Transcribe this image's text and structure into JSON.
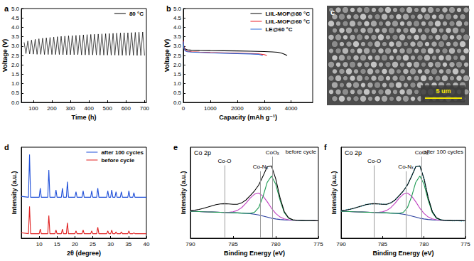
{
  "chart_data": [
    {
      "panel": "a",
      "type": "line",
      "x_label": "Time (h)",
      "y_label": "Voltage (V)",
      "x": [
        50,
        60,
        70,
        80,
        90,
        100,
        110,
        120,
        130,
        140,
        150,
        160,
        170,
        180,
        190,
        200,
        210,
        220,
        230,
        240,
        250,
        260,
        270,
        280,
        290,
        300,
        310,
        320,
        330,
        340,
        350,
        360,
        370,
        380,
        390,
        400,
        410,
        420,
        430,
        440,
        450,
        460,
        470,
        480,
        490,
        500,
        510,
        520,
        530,
        540,
        550,
        560,
        570,
        580,
        590,
        600,
        610,
        620,
        630,
        640,
        650,
        660,
        670,
        680,
        690,
        700
      ],
      "series": [
        {
          "name": "80 °C",
          "color": "#000000",
          "values": [
            3.2,
            2.6,
            3.27,
            2.58,
            3.32,
            2.57,
            3.36,
            2.56,
            3.39,
            2.56,
            3.42,
            2.55,
            3.44,
            2.55,
            3.46,
            2.55,
            3.48,
            2.55,
            3.5,
            2.55,
            3.52,
            2.54,
            3.53,
            2.54,
            3.55,
            2.54,
            3.56,
            2.54,
            3.57,
            2.54,
            3.58,
            2.53,
            3.6,
            2.53,
            3.61,
            2.53,
            3.62,
            2.53,
            3.63,
            2.53,
            3.64,
            2.52,
            3.65,
            2.52,
            3.66,
            2.52,
            3.67,
            2.52,
            3.68,
            2.52,
            3.69,
            2.51,
            3.7,
            2.51,
            3.71,
            2.51,
            3.71,
            2.51,
            3.72,
            2.51,
            3.73,
            2.5,
            3.74,
            2.5,
            3.75,
            2.5
          ]
        }
      ],
      "xlim": [
        35,
        710
      ],
      "xticks": [
        100,
        200,
        300,
        400,
        500,
        600,
        700
      ],
      "ylim": [
        0,
        5
      ],
      "yticks": [
        {
          "value": 0,
          "label": "0.0"
        },
        0.5,
        {
          "value": 1,
          "label": "1.0"
        },
        1.5,
        {
          "value": 2,
          "label": "2.0"
        },
        2.5,
        {
          "value": 3,
          "label": "3.0"
        },
        3.5,
        {
          "value": 4,
          "label": "4.0"
        },
        4.5,
        {
          "value": 5,
          "label": "5.0"
        }
      ],
      "legend": "upper right"
    },
    {
      "panel": "b",
      "type": "line",
      "x_label": "Capacity (mAh g⁻¹)",
      "y_label": "Voltage (V)",
      "series": [
        {
          "name": "LiIL-MOF@80 °C",
          "color": "#000000",
          "x": [
            0,
            20,
            60,
            150,
            300,
            600,
            1000,
            1500,
            2000,
            2500,
            3000,
            3300,
            3500,
            3650,
            3750,
            3850
          ],
          "values": [
            3.2,
            2.95,
            2.85,
            2.8,
            2.78,
            2.77,
            2.76,
            2.75,
            2.74,
            2.73,
            2.71,
            2.69,
            2.67,
            2.62,
            2.57,
            2.5
          ]
        },
        {
          "name": "LiIL-MOF@60 °C",
          "color": "#e8202a",
          "x": [
            0,
            20,
            60,
            150,
            300,
            600,
            1000,
            1500,
            2000,
            2500,
            2800,
            3000,
            3100
          ],
          "values": [
            3.3,
            2.95,
            2.8,
            2.72,
            2.7,
            2.68,
            2.66,
            2.64,
            2.62,
            2.6,
            2.58,
            2.55,
            2.5
          ]
        },
        {
          "name": "LE@60 °C",
          "color": "#2a6ad8",
          "x": [
            0,
            20,
            60,
            150,
            300,
            600,
            1000,
            1500,
            2000,
            2500,
            2800,
            2950
          ],
          "values": [
            3.25,
            2.9,
            2.75,
            2.7,
            2.68,
            2.66,
            2.64,
            2.62,
            2.6,
            2.58,
            2.56,
            2.5
          ]
        }
      ],
      "xlim": [
        0,
        4800
      ],
      "xticks": [
        0,
        1000,
        2000,
        3000,
        4000
      ],
      "ylim": [
        0,
        5
      ],
      "yticks": [
        {
          "value": 0,
          "label": "0.0"
        },
        0.5,
        {
          "value": 1,
          "label": "1.0"
        },
        1.5,
        {
          "value": 2,
          "label": "2.0"
        },
        2.5,
        {
          "value": 3,
          "label": "3.0"
        },
        3.5,
        {
          "value": 4,
          "label": "4.0"
        },
        4.5,
        {
          "value": 5,
          "label": "5.0"
        }
      ],
      "legend": "upper right"
    },
    {
      "panel": "c",
      "type": "image",
      "annotations": [
        {
          "text": "5 um"
        }
      ]
    },
    {
      "panel": "d",
      "type": "line",
      "x_label": "2θ (degree)",
      "y_label": "Intensity (a.u.)",
      "x": [
        5,
        7.0,
        7.3,
        7.6,
        10.0,
        10.3,
        10.6,
        12.4,
        12.7,
        13.0,
        14.4,
        14.7,
        15.0,
        16.2,
        16.5,
        16.8,
        17.6,
        17.9,
        18.2,
        20.0,
        20.3,
        20.6,
        22.0,
        22.3,
        22.6,
        24.4,
        24.7,
        25.0,
        26.1,
        26.4,
        26.7,
        28.9,
        29.2,
        29.5,
        30.0,
        30.3,
        30.6,
        31.2,
        31.5,
        31.8,
        32.7,
        33.0,
        33.3,
        34.8,
        35.1,
        35.4,
        36.2,
        36.5,
        36.8,
        40
      ],
      "series": [
        {
          "name": "after 100 cycles",
          "color": "#1f4fd8",
          "values": [
            46,
            45,
            92,
            45,
            45,
            55,
            45,
            45,
            75,
            45,
            45,
            53,
            45,
            45,
            55,
            45,
            45,
            62,
            45,
            45,
            51,
            45,
            45,
            52,
            45,
            45,
            52,
            45,
            45,
            55,
            45,
            45,
            52,
            45,
            45,
            53,
            45,
            45,
            51,
            45,
            45,
            51,
            45,
            45,
            52,
            45,
            45,
            50,
            45,
            45
          ]
        },
        {
          "name": "before cycle",
          "color": "#e02020",
          "values": [
            6,
            5,
            35,
            5,
            5,
            10,
            5,
            5,
            25,
            5,
            5,
            9,
            5,
            5,
            10,
            5,
            5,
            17,
            5,
            5,
            8,
            5,
            5,
            9,
            5,
            5,
            8,
            5,
            5,
            12,
            5,
            5,
            8,
            5,
            5,
            9,
            5,
            5,
            7,
            5,
            5,
            7,
            5,
            5,
            8,
            5,
            5,
            6,
            5,
            5
          ]
        }
      ],
      "xlim": [
        5,
        40
      ],
      "xticks": [
        10,
        15,
        20,
        25,
        30,
        35,
        40
      ],
      "ylim": [
        0,
        100
      ],
      "tick_labels": "x",
      "legend": "upper right"
    },
    {
      "panel": "e",
      "type": "line",
      "title": "before cycle",
      "x_label": "Binding Energy (eV)",
      "y_label": "Intensity (a.u.)",
      "x": [
        790,
        789.5,
        789,
        788.5,
        788,
        787.5,
        787,
        786.5,
        786,
        785.5,
        785,
        784.5,
        784,
        783.5,
        783,
        782.5,
        782,
        781.5,
        781,
        780.5,
        780,
        779.5,
        779,
        778.5,
        778,
        777.5,
        777,
        776.5,
        776,
        775.5,
        775
      ],
      "series": [
        {
          "color": "#2a3f9f",
          "values": [
            37,
            36.8,
            36.6,
            36.4,
            36.2,
            36,
            35.8,
            35.6,
            35.4,
            35.2,
            35,
            34.8,
            34.5,
            34.2,
            33.8,
            33,
            32,
            30.5,
            29,
            27.5,
            26.5,
            25.8,
            25.3,
            25,
            24.8,
            24.6,
            24.4,
            24.2,
            24.1,
            24,
            23.9
          ]
        },
        {
          "color": "#c040c0",
          "values": [
            37,
            36.8,
            36.6,
            36.4,
            36.2,
            36,
            35.8,
            35.6,
            35.5,
            35.6,
            36.3,
            38.2,
            42,
            47.9,
            55,
            60.5,
            62,
            58,
            50.2,
            41.2,
            34,
            29.2,
            26.6,
            25.4,
            24.9,
            24.6,
            24.4,
            24.2,
            24.1,
            24,
            23.9
          ]
        },
        {
          "color": "#1a9850",
          "values": [
            37,
            36.8,
            36.6,
            36.4,
            36.2,
            36,
            35.8,
            35.6,
            35.4,
            35.2,
            35,
            34.8,
            34.5,
            34.2,
            34.2,
            35.6,
            42,
            57.1,
            76.7,
            85.5,
            74.2,
            52.4,
            35.3,
            27.6,
            25.2,
            24.6,
            24.4,
            24.2,
            24.1,
            24,
            23.9
          ]
        },
        {
          "color": "#000000",
          "values": [
            38.0,
            38.6,
            39.6,
            41.0,
            42.7,
            44.5,
            46.1,
            47.1,
            47.5,
            47.1,
            46.6,
            46.7,
            48.5,
            52.5,
            58.4,
            64.9,
            73.0,
            85.1,
            98.2,
            99.3,
            81.7,
            55.8,
            36.6,
            28.0,
            25.3,
            24.6,
            24.4,
            24.2,
            24.1,
            24,
            23.9
          ]
        }
      ],
      "xlim": [
        790,
        775
      ],
      "xticks": [
        790,
        785,
        780,
        775
      ],
      "ylim": [
        0,
        125
      ],
      "tick_labels": "x",
      "annotations": [
        {
          "text": "Co 2p"
        },
        {
          "text": "Co-O",
          "x": 786,
          "y": 100
        },
        {
          "text": "Co-Nₓ",
          "x": 781.8,
          "y": 92
        },
        {
          "text": "CoOₓ",
          "x": 780.4,
          "y": 112
        }
      ]
    },
    {
      "panel": "f",
      "type": "line",
      "title": "after 100 cycles",
      "x_label": "Binding Energy (eV)",
      "y_label": "Intensity (a.u.)",
      "x": [
        790,
        789.5,
        789,
        788.5,
        788,
        787.5,
        787,
        786.5,
        786,
        785.5,
        785,
        784.5,
        784,
        783.5,
        783,
        782.5,
        782,
        781.5,
        781,
        780.5,
        780,
        779.5,
        779,
        778.5,
        778,
        777.5,
        777,
        776.5,
        776,
        775.5,
        775
      ],
      "series": [
        {
          "color": "#33c4d8",
          "line_style": "dotted",
          "values": [
            38.3,
            38.4,
            39.9,
            40.7,
            42.9,
            44.2,
            46.4,
            46.8,
            47.8,
            46.9,
            46.9,
            46.4,
            48.8,
            52.2,
            58.7,
            64.6,
            73.3,
            84.8,
            98.5,
            99.0,
            82.0,
            55.5,
            36.9,
            27.7,
            25.6,
            24.3,
            24.7,
            23.9,
            24.4,
            23.7,
            24.2
          ]
        },
        {
          "color": "#2a3f9f",
          "values": [
            37,
            36.8,
            36.6,
            36.4,
            36.2,
            36,
            35.8,
            35.6,
            35.4,
            35.2,
            35,
            34.8,
            34.5,
            34.2,
            33.8,
            33,
            32,
            30.5,
            29,
            27.5,
            26.5,
            25.8,
            25.3,
            25,
            24.8,
            24.6,
            24.4,
            24.2,
            24.1,
            24,
            23.9
          ]
        },
        {
          "color": "#c040c0",
          "values": [
            37,
            36.8,
            36.6,
            36.4,
            36.2,
            36,
            35.8,
            35.6,
            35.5,
            35.6,
            36.3,
            38.2,
            42,
            47.9,
            55,
            60.5,
            62,
            58,
            50.2,
            41.2,
            34,
            29.2,
            26.6,
            25.4,
            24.9,
            24.6,
            24.4,
            24.2,
            24.1,
            24,
            23.9
          ]
        },
        {
          "color": "#1a9850",
          "values": [
            37,
            36.8,
            36.6,
            36.4,
            36.2,
            36,
            35.8,
            35.6,
            35.4,
            35.2,
            35,
            34.8,
            34.5,
            34.2,
            34.2,
            35.6,
            42,
            57.1,
            76.7,
            85.5,
            74.2,
            52.4,
            35.3,
            27.6,
            25.2,
            24.6,
            24.4,
            24.2,
            24.1,
            24,
            23.9
          ]
        },
        {
          "color": "#000000",
          "values": [
            38.0,
            38.6,
            39.6,
            41.0,
            42.7,
            44.5,
            46.1,
            47.1,
            47.5,
            47.1,
            46.6,
            46.7,
            48.5,
            52.5,
            58.4,
            64.9,
            73.0,
            85.1,
            98.2,
            99.3,
            81.7,
            55.8,
            36.6,
            28.0,
            25.3,
            24.6,
            24.4,
            24.2,
            24.1,
            24,
            23.9
          ]
        }
      ],
      "xlim": [
        790,
        775
      ],
      "xticks": [
        790,
        785,
        780,
        775
      ],
      "ylim": [
        0,
        125
      ],
      "tick_labels": "x",
      "annotations": [
        {
          "text": "Co 2p"
        },
        {
          "text": "Co-O",
          "x": 786,
          "y": 100
        },
        {
          "text": "Co-Nₓ",
          "x": 782.2,
          "y": 92
        },
        {
          "text": "CoOₓ",
          "x": 780.3,
          "y": 112
        }
      ]
    }
  ]
}
